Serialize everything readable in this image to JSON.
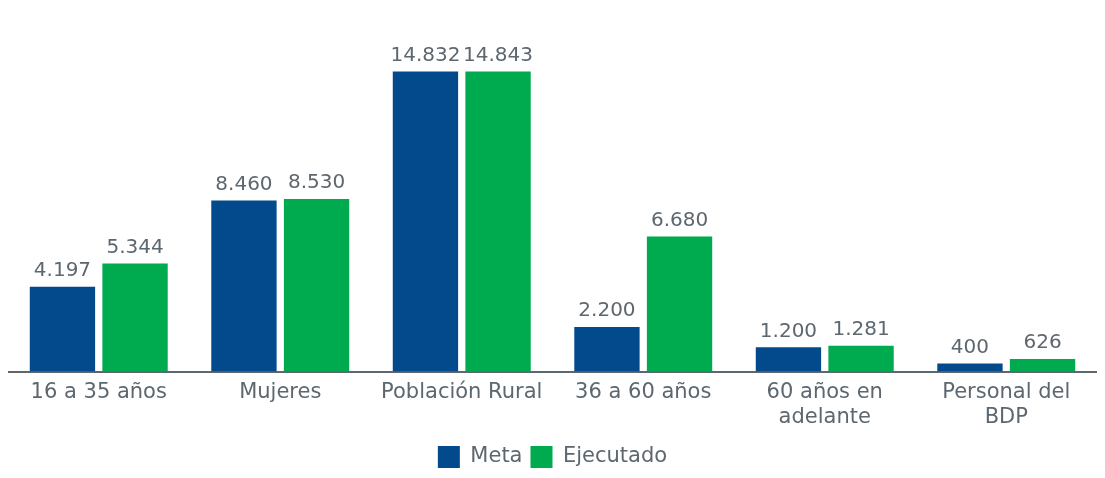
{
  "chart_data": {
    "type": "bar",
    "categories": [
      "16 a 35 años",
      "Mujeres",
      "Población Rural",
      "36 a 60 años",
      "60 años en adelante",
      "Personal del BDP"
    ],
    "series": [
      {
        "name": "Meta",
        "color": "#034a8c",
        "values": [
          4197,
          8460,
          14832,
          2200,
          1200,
          400
        ],
        "value_labels": [
          "4.197",
          "8.460",
          "14.832",
          "2.200",
          "1.200",
          "400"
        ]
      },
      {
        "name": "Ejecutado",
        "color": "#00aa4f",
        "values": [
          5344,
          8530,
          14843,
          6680,
          1281,
          626
        ],
        "value_labels": [
          "5.344",
          "8.530",
          "14.843",
          "6.680",
          "1.281",
          "626"
        ]
      }
    ],
    "legend": "bottom",
    "grid": false
  }
}
